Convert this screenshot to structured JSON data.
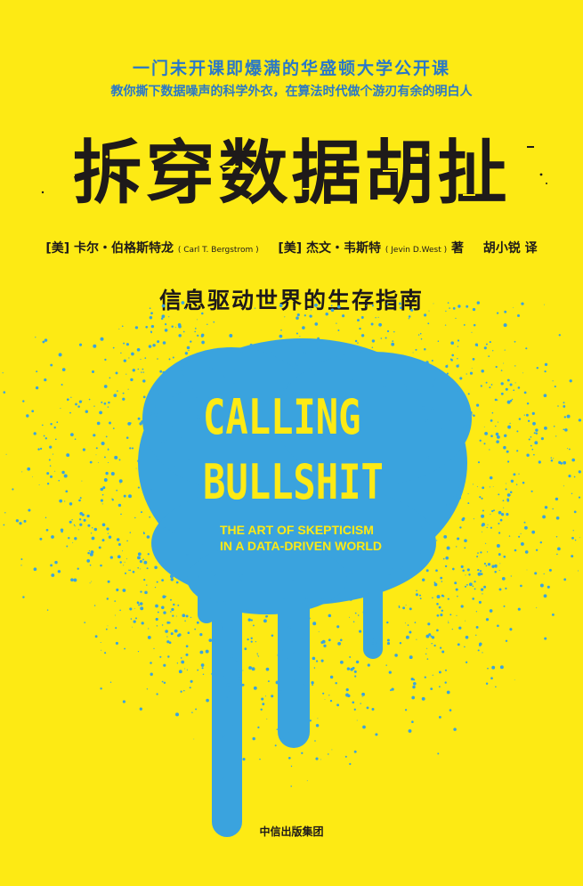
{
  "cover": {
    "tagline": "一门未开课即爆满的华盛顿大学公开课",
    "subtagline": "教你撕下数据噪声的科学外衣，在算法时代做个游刃有余的明白人",
    "title": "拆穿数据胡扯",
    "authors": {
      "author1_prefix": "[美]",
      "author1_name": "卡尔・伯格斯特龙",
      "author1_en": "( Carl T. Bergstrom )",
      "author2_prefix": "[美]",
      "author2_name": "杰文・韦斯特",
      "author2_en": "( Jevin D.West )",
      "author_role": "著",
      "translator_name": "胡小锐",
      "translator_role": "译"
    },
    "subtitle": "信息驱动世界的生存指南",
    "english_title_line1": "CALLING",
    "english_title_line2": "BULLSHIT",
    "english_subtitle_line1": "THE ART OF SKEPTICISM",
    "english_subtitle_line2": "IN A DATA-DRIVEN WORLD",
    "publisher": "中信出版集团"
  },
  "colors": {
    "background": "#fdea14",
    "spray_blue": "#3aa3de",
    "text_dark": "#1e1a1a",
    "tagline_blue": "#2a78c7"
  }
}
